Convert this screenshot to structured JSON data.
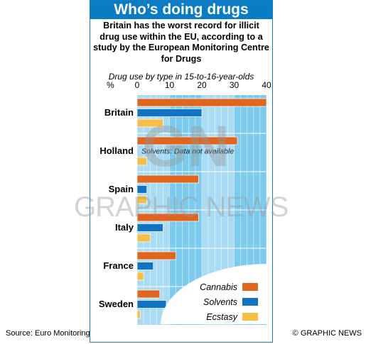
{
  "header": {
    "title": "Who’s doing drugs",
    "intro": "Britain has the worst record for illicit drug use within the EU, according to a study by the European Monitoring Centre for Drugs"
  },
  "chart_data": {
    "type": "bar",
    "orientation": "horizontal",
    "subtitle": "Drug use by type in 15-to-16-year-olds",
    "unit_label": "%",
    "categories": [
      "Britain",
      "Holland",
      "Spain",
      "Italy",
      "France",
      "Sweden"
    ],
    "xlim": [
      0,
      40
    ],
    "ticks": [
      0,
      10,
      20,
      30,
      40
    ],
    "series": [
      {
        "name": "Cannabis",
        "color": "#e0651f",
        "values": [
          40,
          31,
          19,
          19,
          12,
          7
        ]
      },
      {
        "name": "Solvents",
        "color": "#1273c2",
        "values": [
          20,
          null,
          3,
          8,
          5,
          9
        ]
      },
      {
        "name": "Ecstasy",
        "color": "#f6be48",
        "values": [
          8,
          3,
          3,
          4,
          2,
          1
        ]
      }
    ],
    "annotations": [
      {
        "category": "Holland",
        "text": "Solvents: Data not available"
      }
    ],
    "legend": "bottom-right",
    "grid": true
  },
  "watermark": {
    "logo": "GN",
    "text": "GRAPHIC NEWS"
  },
  "footer": {
    "source": "Source: Euro Monitoring",
    "credit": "© GRAPHIC NEWS"
  }
}
